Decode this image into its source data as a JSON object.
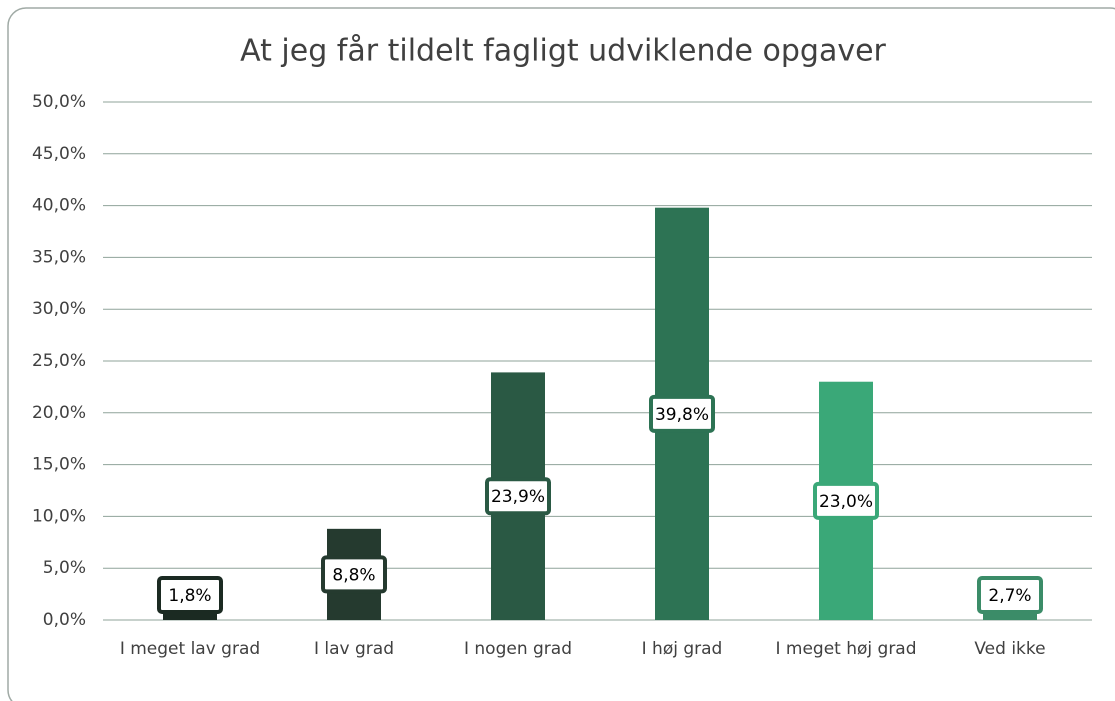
{
  "chart_data": {
    "type": "bar",
    "title": "At jeg får tildelt fagligt udviklende opgaver",
    "categories": [
      "I meget lav grad",
      "I lav grad",
      "I nogen grad",
      "I høj grad",
      "I meget høj grad",
      "Ved ikke"
    ],
    "values": [
      1.8,
      8.8,
      23.9,
      39.8,
      23.0,
      2.7
    ],
    "value_labels": [
      "1,8%",
      "8,8%",
      "23,9%",
      "39,8%",
      "23,0%",
      "2,7%"
    ],
    "colors": [
      "#1b2a22",
      "#253a2f",
      "#2a5944",
      "#2d7354",
      "#3aa878",
      "#3b8c68"
    ],
    "ylim": [
      0,
      50
    ],
    "yticks": [
      {
        "value": 0,
        "label": "0,0%"
      },
      {
        "value": 5,
        "label": "5,0%"
      },
      {
        "value": 10,
        "label": "10,0%"
      },
      {
        "value": 15,
        "label": "15,0%"
      },
      {
        "value": 20,
        "label": "20,0%"
      },
      {
        "value": 25,
        "label": "25,0%"
      },
      {
        "value": 30,
        "label": "30,0%"
      },
      {
        "value": 35,
        "label": "35,0%"
      },
      {
        "value": 40,
        "label": "40,0%"
      },
      {
        "value": 45,
        "label": "45,0%"
      },
      {
        "value": 50,
        "label": "50,0%"
      }
    ],
    "grid": true
  }
}
